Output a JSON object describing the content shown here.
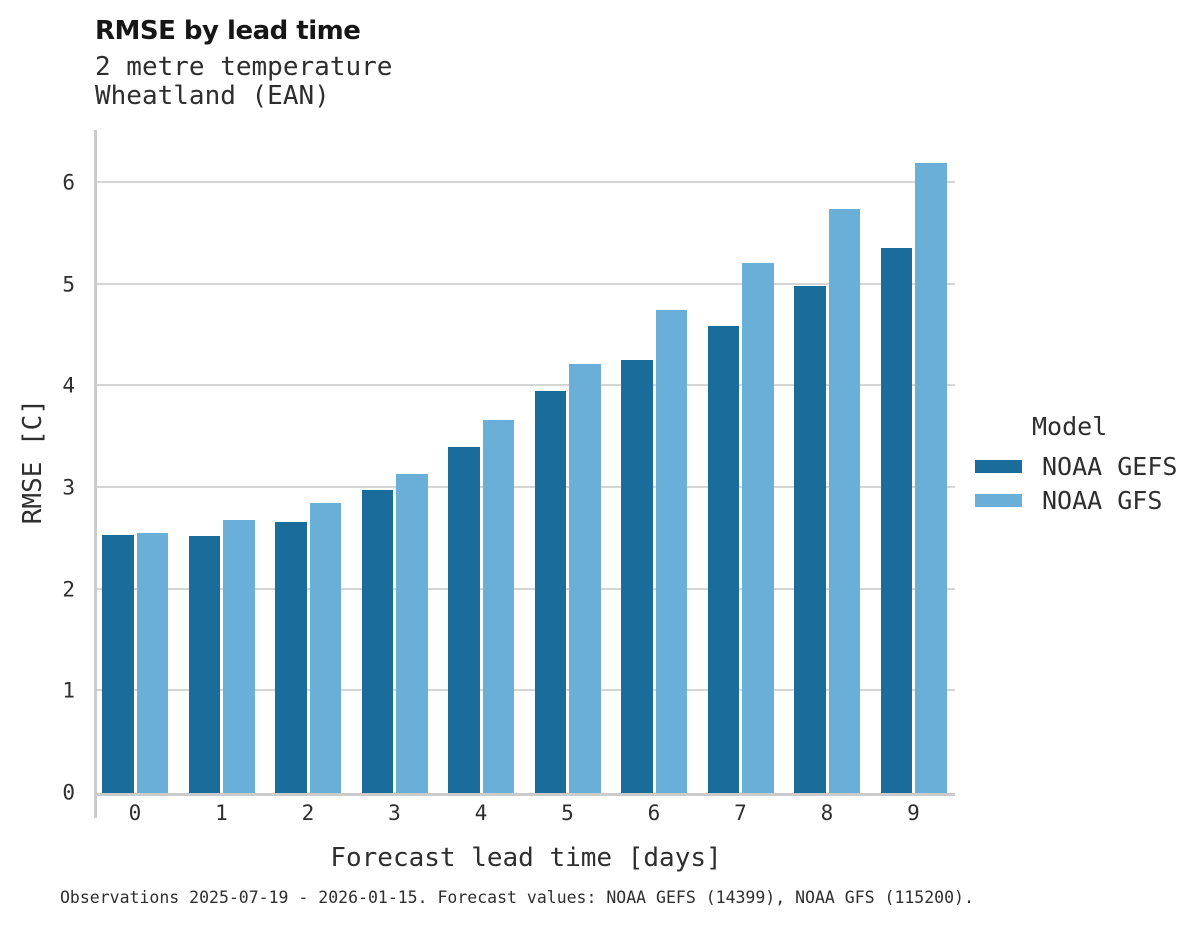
{
  "header": {
    "title": "RMSE by lead time",
    "subtitle_line1": "2 metre temperature",
    "subtitle_line2": "Wheatland (EAN)"
  },
  "chart_data": {
    "type": "bar",
    "title": "RMSE by lead time",
    "subtitle": [
      "2 metre temperature",
      "Wheatland (EAN)"
    ],
    "categories": [
      "0",
      "1",
      "2",
      "3",
      "4",
      "5",
      "6",
      "7",
      "8",
      "9"
    ],
    "series": [
      {
        "name": "NOAA GEFS",
        "color": "#1a6c9b",
        "values": [
          2.54,
          2.53,
          2.67,
          2.98,
          3.4,
          3.95,
          4.26,
          4.59,
          4.99,
          5.36
        ]
      },
      {
        "name": "NOAA GFS",
        "color": "#69afd8",
        "values": [
          2.56,
          2.68,
          2.85,
          3.14,
          3.67,
          4.22,
          4.75,
          5.21,
          5.74,
          6.2
        ]
      }
    ],
    "xlabel": "Forecast lead time [days]",
    "ylabel": "RMSE [C]",
    "ylim": [
      0,
      6.52
    ],
    "yticks": [
      0,
      1,
      2,
      3,
      4,
      5,
      6
    ],
    "grid": "horizontal",
    "legend": {
      "title": "Model",
      "position": "right"
    }
  },
  "footer": {
    "text": "Observations 2025-07-19 - 2026-01-15. Forecast values: NOAA GEFS (14399), NOAA GFS (115200)."
  }
}
